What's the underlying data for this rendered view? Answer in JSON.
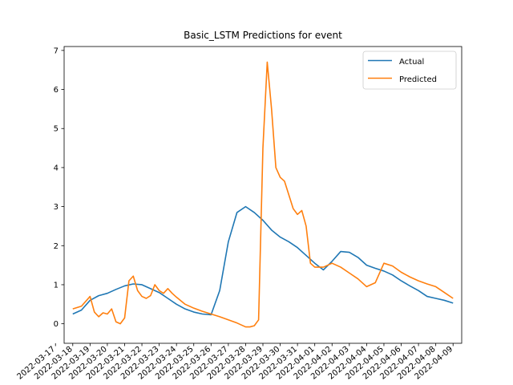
{
  "colors": {
    "actual": "#1f77b4",
    "predicted": "#ff7f0e",
    "axis": "#000000",
    "background": "#ffffff"
  },
  "chart_data": {
    "type": "line",
    "title": "Basic_LSTM Predictions for event",
    "xlabel": "",
    "ylabel": "",
    "grid": false,
    "legend_position": "top-right",
    "xlim": [
      "2022-03-17T12:00",
      "2022-04-09T12:00"
    ],
    "ylim": [
      -0.5,
      7.1
    ],
    "x_ticks": [
      "2022-03-17",
      "2022-03-18",
      "2022-03-19",
      "2022-03-20",
      "2022-03-21",
      "2022-03-22",
      "2022-03-23",
      "2022-03-24",
      "2022-03-25",
      "2022-03-26",
      "2022-03-27",
      "2022-03-28",
      "2022-03-29",
      "2022-03-30",
      "2022-03-31",
      "2022-04-01",
      "2022-04-02",
      "2022-04-03",
      "2022-04-04",
      "2022-04-05",
      "2022-04-06",
      "2022-04-07",
      "2022-04-08",
      "2022-04-09"
    ],
    "y_ticks": [
      0,
      1,
      2,
      3,
      4,
      5,
      6,
      7
    ],
    "series": [
      {
        "name": "Actual",
        "x": [
          "2022-03-18T00:00",
          "2022-03-18T12:00",
          "2022-03-19T00:00",
          "2022-03-19T12:00",
          "2022-03-20T00:00",
          "2022-03-20T12:00",
          "2022-03-21T00:00",
          "2022-03-21T12:00",
          "2022-03-22T00:00",
          "2022-03-22T12:00",
          "2022-03-23T00:00",
          "2022-03-23T12:00",
          "2022-03-24T00:00",
          "2022-03-24T12:00",
          "2022-03-25T00:00",
          "2022-03-25T12:00",
          "2022-03-26T00:00",
          "2022-03-26T12:00",
          "2022-03-27T00:00",
          "2022-03-27T12:00",
          "2022-03-28T00:00",
          "2022-03-28T12:00",
          "2022-03-29T00:00",
          "2022-03-29T12:00",
          "2022-03-30T00:00",
          "2022-03-30T12:00",
          "2022-03-31T00:00",
          "2022-03-31T12:00",
          "2022-04-01T00:00",
          "2022-04-01T12:00",
          "2022-04-02T00:00",
          "2022-04-02T12:00",
          "2022-04-03T00:00",
          "2022-04-03T12:00",
          "2022-04-04T00:00",
          "2022-04-04T12:00",
          "2022-04-05T00:00",
          "2022-04-05T12:00",
          "2022-04-06T00:00",
          "2022-04-06T12:00",
          "2022-04-07T00:00",
          "2022-04-07T12:00",
          "2022-04-08T00:00",
          "2022-04-08T12:00",
          "2022-04-09T00:00"
        ],
        "values": [
          0.25,
          0.35,
          0.6,
          0.72,
          0.78,
          0.88,
          0.97,
          1.02,
          1.0,
          0.9,
          0.8,
          0.65,
          0.5,
          0.38,
          0.3,
          0.25,
          0.23,
          0.85,
          2.1,
          2.85,
          3.0,
          2.85,
          2.65,
          2.4,
          2.22,
          2.1,
          1.95,
          1.75,
          1.55,
          1.38,
          1.6,
          1.85,
          1.83,
          1.7,
          1.5,
          1.42,
          1.35,
          1.25,
          1.1,
          0.97,
          0.85,
          0.7,
          0.65,
          0.6,
          0.53
        ]
      },
      {
        "name": "Predicted",
        "x": [
          "2022-03-18T00:00",
          "2022-03-18T12:00",
          "2022-03-19T00:00",
          "2022-03-19T06:00",
          "2022-03-19T12:00",
          "2022-03-19T18:00",
          "2022-03-20T00:00",
          "2022-03-20T06:00",
          "2022-03-20T12:00",
          "2022-03-20T18:00",
          "2022-03-21T00:00",
          "2022-03-21T06:00",
          "2022-03-21T12:00",
          "2022-03-21T18:00",
          "2022-03-22T00:00",
          "2022-03-22T06:00",
          "2022-03-22T12:00",
          "2022-03-22T18:00",
          "2022-03-23T00:00",
          "2022-03-23T06:00",
          "2022-03-23T12:00",
          "2022-03-23T18:00",
          "2022-03-24T00:00",
          "2022-03-24T12:00",
          "2022-03-25T00:00",
          "2022-03-25T12:00",
          "2022-03-26T00:00",
          "2022-03-26T12:00",
          "2022-03-27T00:00",
          "2022-03-27T12:00",
          "2022-03-28T00:00",
          "2022-03-28T06:00",
          "2022-03-28T12:00",
          "2022-03-28T18:00",
          "2022-03-29T00:00",
          "2022-03-29T06:00",
          "2022-03-29T12:00",
          "2022-03-29T18:00",
          "2022-03-30T00:00",
          "2022-03-30T06:00",
          "2022-03-30T12:00",
          "2022-03-30T18:00",
          "2022-03-31T00:00",
          "2022-03-31T06:00",
          "2022-03-31T12:00",
          "2022-03-31T18:00",
          "2022-04-01T00:00",
          "2022-04-01T12:00",
          "2022-04-02T00:00",
          "2022-04-02T12:00",
          "2022-04-03T00:00",
          "2022-04-03T12:00",
          "2022-04-04T00:00",
          "2022-04-04T12:00",
          "2022-04-05T00:00",
          "2022-04-05T12:00",
          "2022-04-06T00:00",
          "2022-04-06T12:00",
          "2022-04-07T00:00",
          "2022-04-07T12:00",
          "2022-04-08T00:00",
          "2022-04-08T12:00",
          "2022-04-09T00:00"
        ],
        "values": [
          0.38,
          0.45,
          0.7,
          0.3,
          0.18,
          0.28,
          0.25,
          0.38,
          0.05,
          0.0,
          0.15,
          1.1,
          1.22,
          0.85,
          0.7,
          0.65,
          0.72,
          1.0,
          0.85,
          0.78,
          0.9,
          0.78,
          0.68,
          0.5,
          0.4,
          0.32,
          0.25,
          0.18,
          0.1,
          0.02,
          -0.08,
          -0.08,
          -0.05,
          0.1,
          4.5,
          6.7,
          5.5,
          4.0,
          3.75,
          3.65,
          3.3,
          2.95,
          2.8,
          2.9,
          2.5,
          1.55,
          1.45,
          1.45,
          1.55,
          1.45,
          1.3,
          1.15,
          0.95,
          1.05,
          1.55,
          1.48,
          1.32,
          1.2,
          1.1,
          1.02,
          0.95,
          0.8,
          0.65
        ]
      }
    ]
  }
}
